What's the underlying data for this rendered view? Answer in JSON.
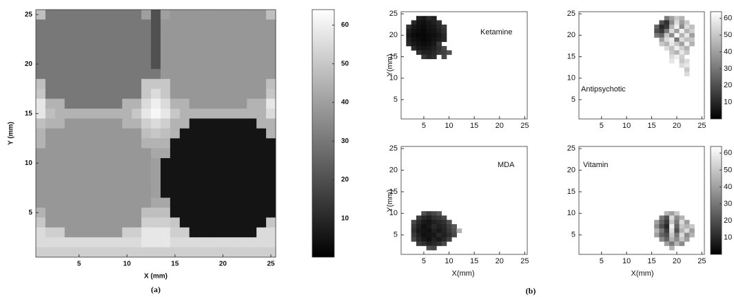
{
  "chart_data": [
    {
      "type": "heatmap",
      "caption": "(a)",
      "xlabel": "X (mm)",
      "ylabel": "Y (mm)",
      "xlim": [
        0.5,
        25.5
      ],
      "ylim": [
        0.5,
        25.5
      ],
      "xticks": [
        5,
        10,
        15,
        20,
        25
      ],
      "yticks": [
        5,
        10,
        15,
        20,
        25
      ],
      "clim": [
        0,
        64
      ],
      "colorbar_ticks": [
        10,
        20,
        30,
        40,
        50,
        60
      ],
      "x": [
        1,
        2,
        3,
        4,
        5,
        6,
        7,
        8,
        9,
        10,
        11,
        12,
        13,
        14,
        15,
        16,
        17,
        18,
        19,
        20,
        21,
        22,
        23,
        24,
        25
      ],
      "y": [
        25,
        24,
        23,
        22,
        21,
        20,
        19,
        18,
        17,
        16,
        15,
        14,
        13,
        12,
        11,
        10,
        9,
        8,
        7,
        6,
        5,
        4,
        3,
        2,
        1
      ],
      "z": [
        [
          48,
          30,
          30,
          30,
          30,
          30,
          30,
          30,
          30,
          30,
          30,
          40,
          20,
          40,
          38,
          38,
          38,
          38,
          38,
          38,
          38,
          38,
          38,
          38,
          48
        ],
        [
          30,
          30,
          30,
          30,
          30,
          30,
          30,
          30,
          30,
          30,
          30,
          30,
          20,
          38,
          38,
          38,
          38,
          38,
          38,
          38,
          38,
          38,
          38,
          38,
          38
        ],
        [
          30,
          30,
          30,
          30,
          30,
          30,
          30,
          30,
          30,
          30,
          30,
          30,
          20,
          38,
          38,
          38,
          38,
          38,
          38,
          38,
          38,
          38,
          38,
          38,
          38
        ],
        [
          30,
          30,
          30,
          30,
          30,
          30,
          30,
          30,
          30,
          30,
          30,
          30,
          20,
          38,
          38,
          38,
          38,
          38,
          38,
          38,
          38,
          38,
          38,
          38,
          38
        ],
        [
          30,
          30,
          30,
          30,
          30,
          30,
          30,
          30,
          30,
          30,
          30,
          30,
          20,
          38,
          38,
          38,
          38,
          38,
          38,
          38,
          38,
          38,
          38,
          38,
          38
        ],
        [
          30,
          30,
          30,
          30,
          30,
          30,
          30,
          30,
          30,
          30,
          30,
          30,
          20,
          38,
          38,
          38,
          38,
          38,
          38,
          38,
          38,
          38,
          38,
          38,
          38
        ],
        [
          30,
          30,
          30,
          30,
          30,
          30,
          30,
          30,
          30,
          30,
          30,
          30,
          30,
          38,
          38,
          38,
          38,
          38,
          38,
          38,
          38,
          38,
          38,
          38,
          38
        ],
        [
          48,
          30,
          30,
          30,
          30,
          30,
          30,
          30,
          30,
          30,
          30,
          50,
          50,
          50,
          38,
          38,
          38,
          38,
          38,
          38,
          38,
          38,
          38,
          38,
          48
        ],
        [
          50,
          30,
          30,
          30,
          30,
          30,
          30,
          30,
          30,
          30,
          30,
          50,
          55,
          50,
          38,
          38,
          38,
          38,
          38,
          38,
          38,
          38,
          38,
          38,
          50
        ],
        [
          58,
          45,
          45,
          30,
          30,
          30,
          30,
          30,
          30,
          45,
          45,
          55,
          60,
          55,
          45,
          45,
          38,
          38,
          38,
          38,
          38,
          38,
          45,
          45,
          58
        ],
        [
          58,
          48,
          45,
          45,
          45,
          45,
          45,
          45,
          45,
          45,
          50,
          58,
          62,
          58,
          50,
          45,
          45,
          45,
          45,
          45,
          45,
          45,
          45,
          45,
          55
        ],
        [
          48,
          45,
          45,
          38,
          38,
          38,
          38,
          38,
          38,
          45,
          45,
          52,
          55,
          52,
          45,
          45,
          5,
          5,
          5,
          5,
          5,
          5,
          5,
          45,
          45
        ],
        [
          45,
          38,
          38,
          38,
          38,
          38,
          38,
          38,
          38,
          38,
          38,
          48,
          50,
          48,
          45,
          5,
          5,
          5,
          5,
          5,
          5,
          5,
          5,
          5,
          45
        ],
        [
          45,
          38,
          38,
          38,
          38,
          38,
          38,
          38,
          38,
          38,
          38,
          45,
          45,
          45,
          5,
          5,
          5,
          5,
          5,
          5,
          5,
          5,
          5,
          5,
          5
        ],
        [
          38,
          38,
          38,
          38,
          38,
          38,
          38,
          38,
          38,
          38,
          38,
          38,
          42,
          42,
          5,
          5,
          5,
          5,
          5,
          5,
          5,
          5,
          5,
          5,
          5
        ],
        [
          38,
          38,
          38,
          38,
          38,
          38,
          38,
          38,
          38,
          38,
          38,
          38,
          40,
          5,
          5,
          5,
          5,
          5,
          5,
          5,
          5,
          5,
          5,
          5,
          5
        ],
        [
          38,
          38,
          38,
          38,
          38,
          38,
          38,
          38,
          38,
          38,
          38,
          38,
          40,
          5,
          5,
          5,
          5,
          5,
          5,
          5,
          5,
          5,
          5,
          5,
          5
        ],
        [
          38,
          38,
          38,
          38,
          38,
          38,
          38,
          38,
          38,
          38,
          38,
          38,
          40,
          5,
          5,
          5,
          5,
          5,
          5,
          5,
          5,
          5,
          5,
          5,
          5
        ],
        [
          38,
          38,
          38,
          38,
          38,
          38,
          38,
          38,
          38,
          38,
          38,
          38,
          40,
          5,
          5,
          5,
          5,
          5,
          5,
          5,
          5,
          5,
          5,
          5,
          5
        ],
        [
          38,
          38,
          38,
          38,
          38,
          38,
          38,
          38,
          38,
          38,
          38,
          38,
          42,
          42,
          5,
          5,
          5,
          5,
          5,
          5,
          5,
          5,
          5,
          5,
          5
        ],
        [
          45,
          38,
          38,
          38,
          38,
          38,
          38,
          38,
          38,
          38,
          38,
          48,
          48,
          48,
          5,
          5,
          5,
          5,
          5,
          5,
          5,
          5,
          5,
          5,
          5
        ],
        [
          50,
          38,
          38,
          38,
          38,
          38,
          38,
          38,
          38,
          38,
          38,
          52,
          52,
          52,
          50,
          5,
          5,
          5,
          5,
          5,
          5,
          5,
          5,
          5,
          50
        ],
        [
          55,
          52,
          52,
          38,
          38,
          38,
          38,
          38,
          38,
          52,
          52,
          58,
          58,
          58,
          52,
          52,
          5,
          5,
          5,
          5,
          5,
          5,
          5,
          55,
          55
        ],
        [
          55,
          55,
          55,
          55,
          55,
          55,
          55,
          55,
          55,
          55,
          55,
          58,
          58,
          58,
          55,
          55,
          55,
          55,
          55,
          55,
          55,
          55,
          55,
          55,
          55
        ],
        [
          52,
          52,
          52,
          52,
          52,
          52,
          52,
          52,
          52,
          52,
          52,
          52,
          52,
          52,
          52,
          52,
          52,
          52,
          52,
          52,
          52,
          52,
          52,
          52,
          52
        ]
      ]
    },
    {
      "type": "heatmap",
      "label": "Ketamine",
      "ylabel": "Y(mm)",
      "xlim": [
        0.5,
        25.5
      ],
      "ylim": [
        0.5,
        25.5
      ],
      "xticks": [
        5,
        10,
        15,
        20,
        25
      ],
      "yticks": [
        5,
        10,
        15,
        20,
        25
      ],
      "clim": [
        0,
        64
      ],
      "x": [
        2,
        3,
        4,
        5,
        6,
        7,
        8,
        9,
        10
      ],
      "y": [
        24,
        23,
        22,
        21,
        20,
        19,
        18,
        17,
        16,
        15
      ],
      "z": [
        [
          null,
          null,
          8,
          6,
          10,
          8,
          null,
          null,
          null
        ],
        [
          null,
          10,
          5,
          4,
          6,
          8,
          12,
          null,
          null
        ],
        [
          12,
          6,
          4,
          3,
          5,
          6,
          10,
          14,
          null
        ],
        [
          8,
          4,
          3,
          2,
          4,
          5,
          8,
          12,
          null
        ],
        [
          6,
          3,
          2,
          2,
          3,
          4,
          6,
          10,
          null
        ],
        [
          8,
          4,
          3,
          2,
          3,
          5,
          7,
          10,
          null
        ],
        [
          10,
          6,
          4,
          3,
          4,
          6,
          14,
          null,
          null
        ],
        [
          null,
          10,
          6,
          5,
          6,
          8,
          12,
          18,
          null
        ],
        [
          null,
          null,
          12,
          8,
          8,
          10,
          14,
          16,
          20
        ],
        [
          null,
          null,
          null,
          14,
          10,
          12,
          null,
          18,
          null
        ]
      ]
    },
    {
      "type": "heatmap",
      "label": "Antipsychotic",
      "xlim": [
        0.5,
        25.5
      ],
      "ylim": [
        0.5,
        25.5
      ],
      "xticks": [
        5,
        10,
        15,
        20,
        25
      ],
      "yticks": [
        5,
        10,
        15,
        20,
        25
      ],
      "clim": [
        0,
        64
      ],
      "colorbar_ticks": [
        10,
        20,
        30,
        40,
        50,
        60
      ],
      "x": [
        16,
        17,
        18,
        19,
        20,
        21,
        22,
        23
      ],
      "y": [
        24,
        23,
        22,
        21,
        20,
        19,
        18,
        17,
        16,
        15,
        14,
        13,
        12,
        11
      ],
      "z": [
        [
          null,
          null,
          30,
          40,
          50,
          45,
          null,
          null
        ],
        [
          null,
          20,
          12,
          35,
          55,
          40,
          50,
          null
        ],
        [
          25,
          10,
          15,
          45,
          60,
          35,
          55,
          48
        ],
        [
          20,
          14,
          30,
          55,
          40,
          60,
          45,
          52
        ],
        [
          30,
          25,
          50,
          35,
          62,
          45,
          58,
          40
        ],
        [
          null,
          40,
          55,
          60,
          30,
          55,
          48,
          50
        ],
        [
          null,
          50,
          45,
          58,
          50,
          40,
          60,
          45
        ],
        [
          null,
          null,
          55,
          48,
          60,
          52,
          45,
          null
        ],
        [
          null,
          null,
          null,
          50,
          45,
          58,
          50,
          null
        ],
        [
          null,
          null,
          null,
          55,
          60,
          52,
          null,
          null
        ],
        [
          null,
          null,
          null,
          58,
          null,
          50,
          55,
          null
        ],
        [
          null,
          null,
          null,
          null,
          null,
          55,
          58,
          null
        ],
        [
          null,
          null,
          null,
          null,
          null,
          null,
          50,
          null
        ],
        [
          null,
          null,
          null,
          null,
          null,
          null,
          55,
          null
        ]
      ]
    },
    {
      "type": "heatmap",
      "label": "MDA",
      "xlabel": "X(mm)",
      "ylabel": "Y(mm)",
      "xlim": [
        0.5,
        25.5
      ],
      "ylim": [
        0.5,
        25.5
      ],
      "xticks": [
        5,
        10,
        15,
        20,
        25
      ],
      "yticks": [
        5,
        10,
        15,
        20,
        25
      ],
      "clim": [
        0,
        64
      ],
      "x": [
        3,
        4,
        5,
        6,
        7,
        8,
        9,
        10,
        11,
        12
      ],
      "y": [
        10,
        9,
        8,
        7,
        6,
        5,
        4,
        3,
        2
      ],
      "z": [
        [
          null,
          null,
          20,
          15,
          18,
          22,
          null,
          null,
          null,
          null
        ],
        [
          null,
          15,
          10,
          8,
          12,
          14,
          18,
          null,
          null,
          null
        ],
        [
          18,
          10,
          6,
          5,
          8,
          10,
          12,
          20,
          null,
          null
        ],
        [
          14,
          8,
          4,
          6,
          10,
          8,
          10,
          16,
          22,
          null
        ],
        [
          12,
          6,
          5,
          4,
          8,
          6,
          9,
          14,
          20,
          45
        ],
        [
          15,
          8,
          4,
          5,
          6,
          10,
          8,
          12,
          18,
          null
        ],
        [
          18,
          10,
          6,
          4,
          8,
          6,
          10,
          16,
          null,
          null
        ],
        [
          null,
          15,
          12,
          8,
          10,
          12,
          18,
          null,
          null,
          null
        ],
        [
          null,
          null,
          null,
          20,
          18,
          null,
          null,
          null,
          null,
          null
        ]
      ]
    },
    {
      "type": "heatmap",
      "label": "Vitamin",
      "xlabel": "X(mm)",
      "xlim": [
        0.5,
        25.5
      ],
      "ylim": [
        0.5,
        25.5
      ],
      "xticks": [
        5,
        10,
        15,
        20,
        25
      ],
      "yticks": [
        5,
        10,
        15,
        20,
        25
      ],
      "clim": [
        0,
        64
      ],
      "colorbar_ticks": [
        10,
        20,
        30,
        40,
        50,
        60
      ],
      "x": [
        16,
        17,
        18,
        19,
        20,
        21,
        22,
        23
      ],
      "y": [
        10,
        9,
        8,
        7,
        6,
        5,
        4,
        3,
        2
      ],
      "z": [
        [
          null,
          null,
          45,
          40,
          50,
          null,
          null,
          null
        ],
        [
          null,
          30,
          20,
          55,
          35,
          45,
          null,
          null
        ],
        [
          40,
          25,
          15,
          50,
          30,
          55,
          40,
          null
        ],
        [
          35,
          20,
          10,
          60,
          25,
          50,
          45,
          50
        ],
        [
          45,
          30,
          15,
          55,
          20,
          45,
          55,
          40
        ],
        [
          40,
          25,
          20,
          50,
          30,
          55,
          35,
          45
        ],
        [
          null,
          35,
          25,
          45,
          35,
          50,
          40,
          null
        ],
        [
          null,
          null,
          40,
          30,
          45,
          35,
          null,
          null
        ],
        [
          null,
          null,
          null,
          45,
          null,
          null,
          null,
          null
        ]
      ]
    }
  ],
  "panel_b_caption": "(b)"
}
